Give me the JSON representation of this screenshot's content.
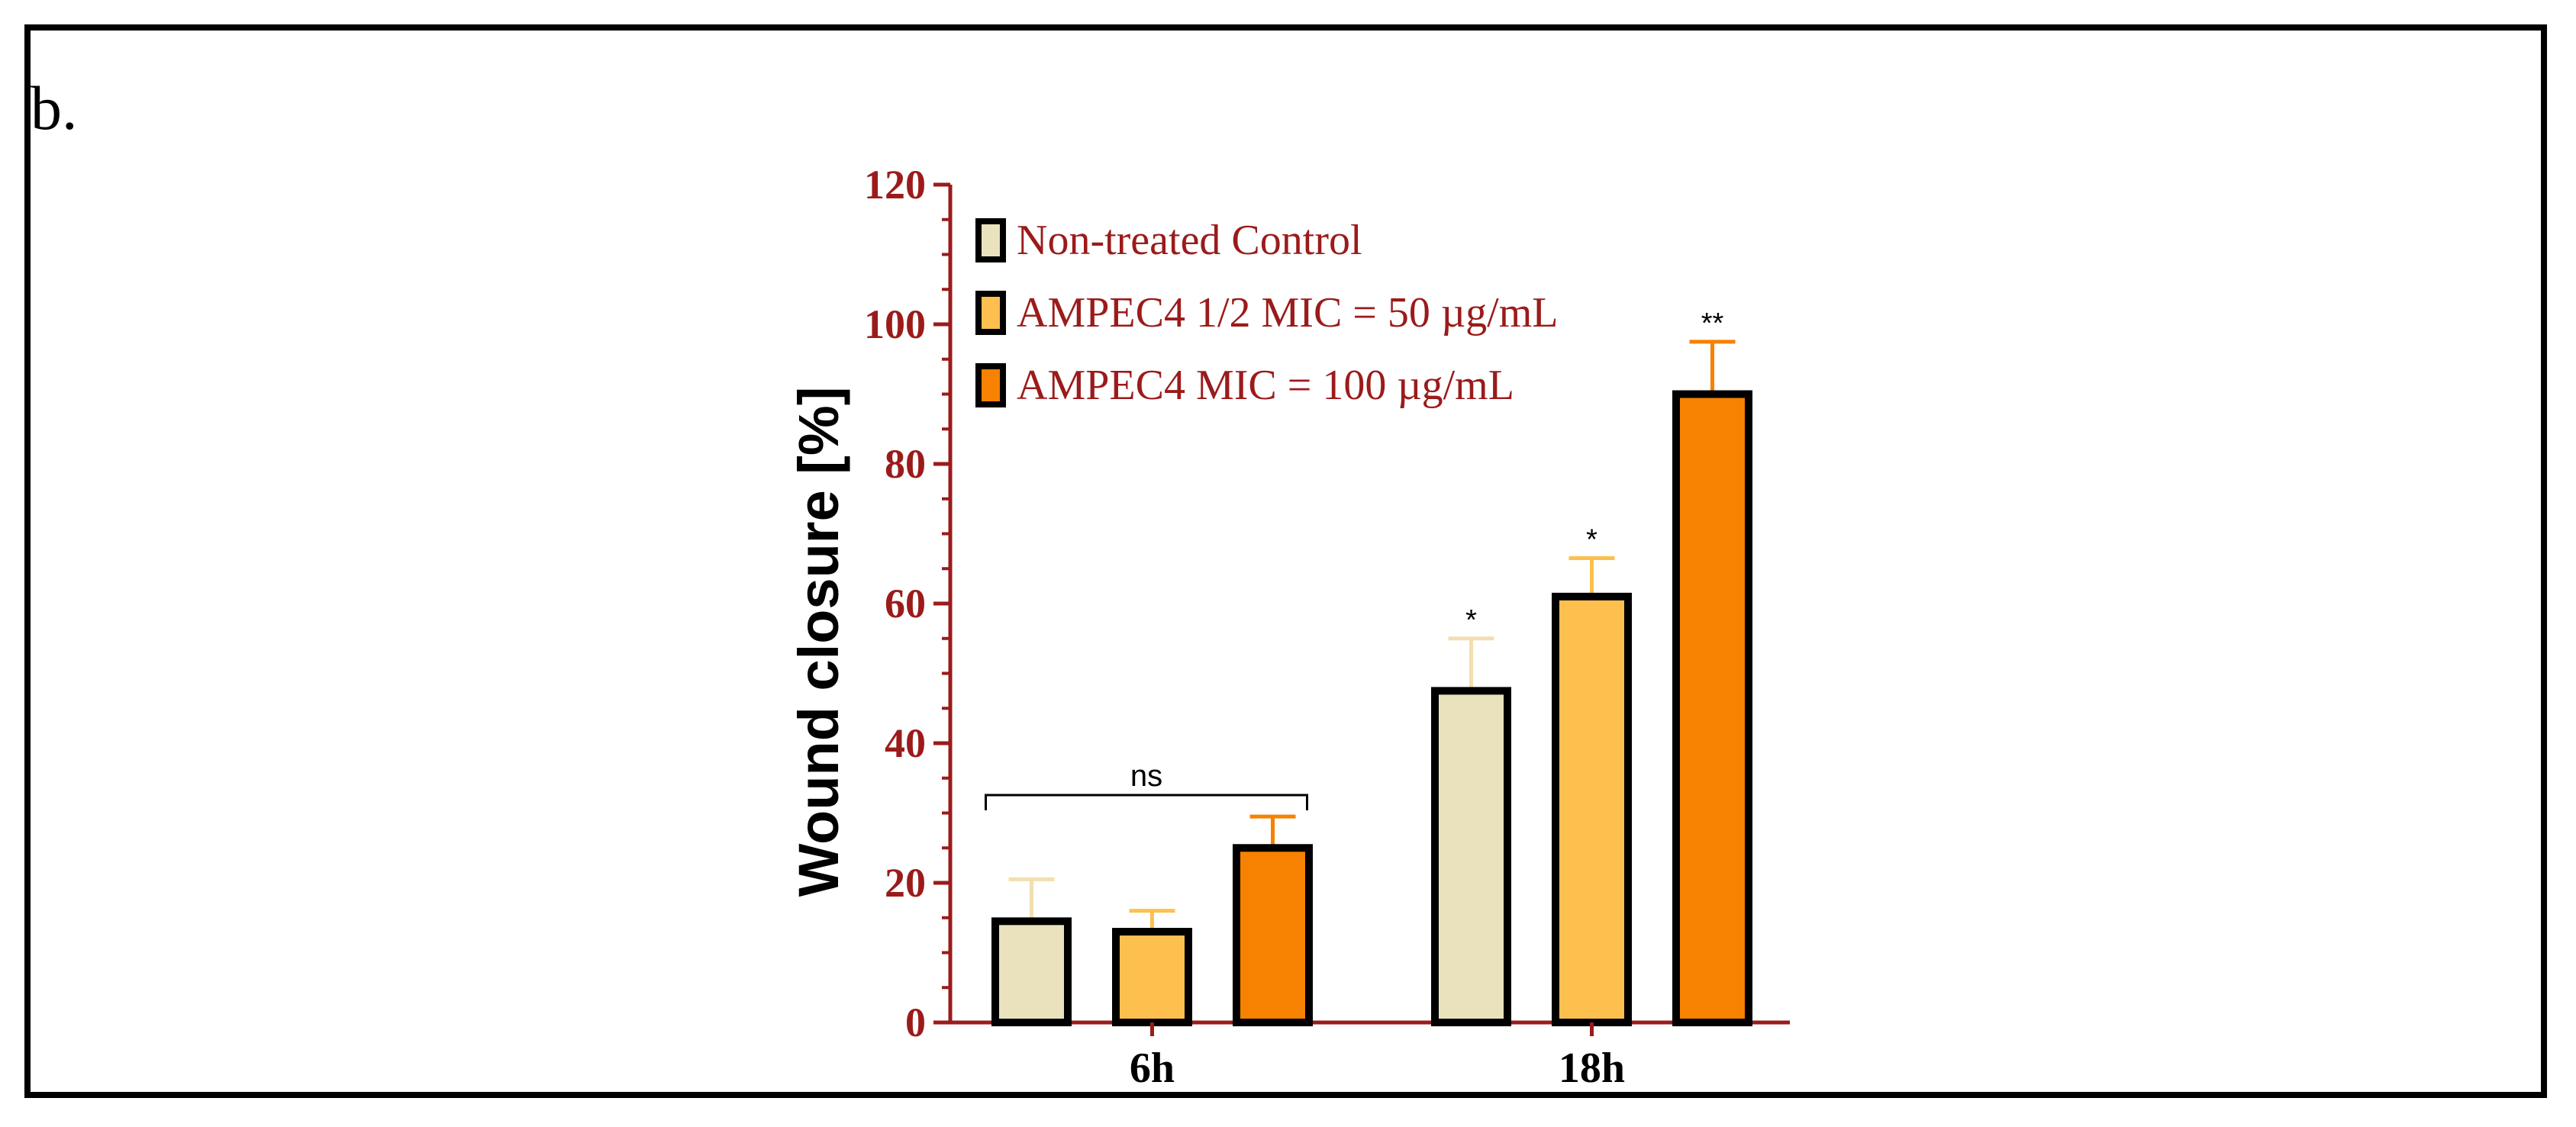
{
  "figure": {
    "panel_label": "b."
  },
  "chart_data": {
    "type": "bar",
    "title": "",
    "xlabel": "",
    "ylabel": "Wound closure [%]",
    "ylim": [
      0,
      120
    ],
    "yticks": [
      "0",
      "20",
      "40",
      "60",
      "80",
      "100",
      "120"
    ],
    "categories": [
      "6h",
      "18h"
    ],
    "series": [
      {
        "name": "Non-treated Control",
        "color": "#E9E2BD",
        "error_color": "#F2DFB0",
        "values": [
          14.5,
          47.5
        ],
        "errors": [
          6,
          7.5
        ]
      },
      {
        "name": "AMPEC4 1/2 MIC = 50 µg/mL",
        "color": "#FDC04F",
        "error_color": "#FDC04F",
        "values": [
          13,
          61
        ],
        "errors": [
          3,
          5.5
        ]
      },
      {
        "name": "AMPEC4 MIC = 100 µg/mL",
        "color": "#F78100",
        "error_color": "#F78100",
        "values": [
          25,
          90
        ],
        "errors": [
          4.5,
          7.5
        ]
      }
    ],
    "annotations": {
      "bracket_6h": "ns",
      "significance_18h": [
        "*",
        "*",
        "**"
      ]
    },
    "legend_position": "top-left",
    "axis_color": "#9B1B1B",
    "grid": false
  }
}
